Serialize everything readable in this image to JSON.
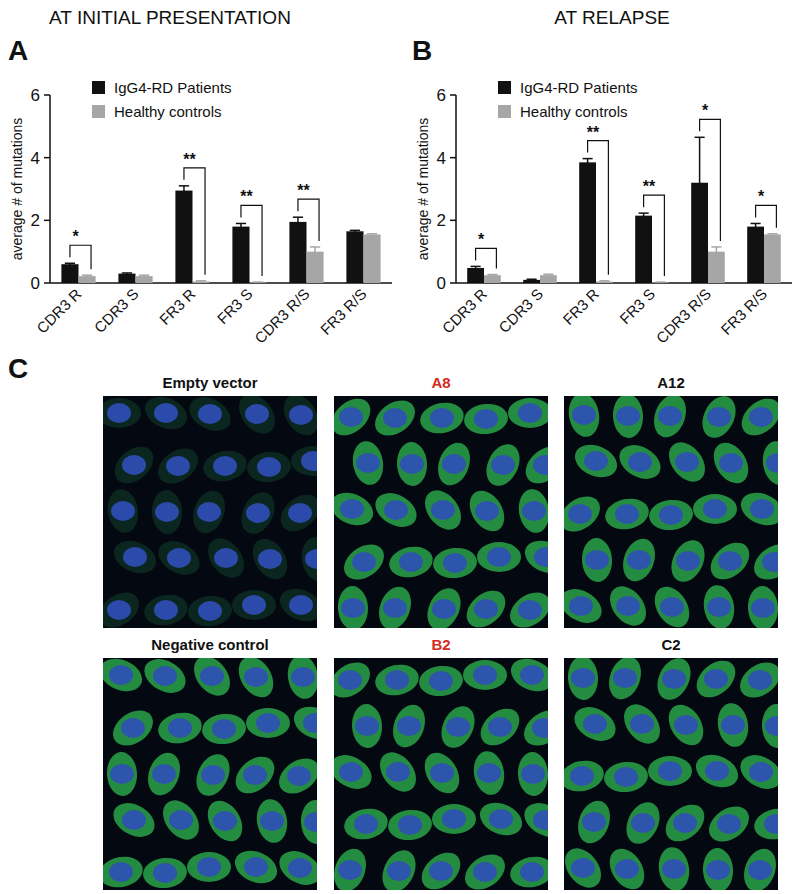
{
  "chart_data": [
    {
      "type": "bar",
      "panel": "A",
      "title": "AT INITIAL PRESENTATION",
      "y_label": "average # of mutations",
      "categories": [
        "CDR3 R",
        "CDR3 S",
        "FR3 R",
        "FR3 S",
        "CDR3 R/S",
        "FR3 R/S"
      ],
      "series": [
        {
          "name": "IgG4-RD Patients",
          "color": "#111111",
          "values": [
            0.6,
            0.3,
            2.95,
            1.8,
            1.95,
            1.65
          ],
          "errors": [
            0.03,
            0.02,
            0.15,
            0.1,
            0.15,
            0.03
          ]
        },
        {
          "name": "Healthy controls",
          "color": "#a6a6a6",
          "values": [
            0.22,
            0.22,
            0.05,
            0.02,
            1.0,
            1.55
          ],
          "errors": [
            0.03,
            0.03,
            0.02,
            0.01,
            0.15,
            0.02
          ]
        }
      ],
      "significance": [
        "*",
        null,
        "**",
        "**",
        "**",
        null
      ],
      "ylim": [
        0,
        6
      ],
      "yticks": [
        0,
        2,
        4,
        6
      ],
      "grid": false,
      "legend": "upper left"
    },
    {
      "type": "bar",
      "panel": "B",
      "title": "AT RELAPSE",
      "y_label": "average # of mutations",
      "categories": [
        "CDR3 R",
        "CDR3 S",
        "FR3 R",
        "FR3 S",
        "CDR3 R/S",
        "FR3 R/S"
      ],
      "series": [
        {
          "name": "IgG4-RD Patients",
          "color": "#111111",
          "values": [
            0.48,
            0.1,
            3.85,
            2.15,
            3.2,
            1.8
          ],
          "errors": [
            0.05,
            0.02,
            0.12,
            0.08,
            1.45,
            0.1
          ]
        },
        {
          "name": "Healthy controls",
          "color": "#a6a6a6",
          "values": [
            0.25,
            0.25,
            0.05,
            0.02,
            1.0,
            1.55
          ],
          "errors": [
            0.02,
            0.03,
            0.02,
            0.01,
            0.15,
            0.02
          ]
        }
      ],
      "significance": [
        "*",
        null,
        "**",
        "**",
        "*",
        "*"
      ],
      "ylim": [
        0,
        6
      ],
      "yticks": [
        0,
        2,
        4,
        6
      ],
      "grid": false,
      "legend": "upper left"
    }
  ],
  "panel_c": {
    "label": "C",
    "images": [
      {
        "label": "Empty vector",
        "highlighted": false
      },
      {
        "label": "A8",
        "highlighted": true
      },
      {
        "label": "A12",
        "highlighted": false
      },
      {
        "label": "Negative control",
        "highlighted": false
      },
      {
        "label": "B2",
        "highlighted": true
      },
      {
        "label": "C2",
        "highlighted": false
      }
    ]
  }
}
